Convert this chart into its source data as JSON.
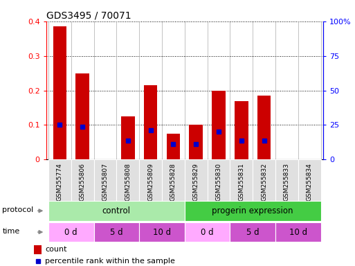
{
  "title": "GDS3495 / 70071",
  "samples": [
    "GSM255774",
    "GSM255806",
    "GSM255807",
    "GSM255808",
    "GSM255809",
    "GSM255828",
    "GSM255829",
    "GSM255830",
    "GSM255831",
    "GSM255832",
    "GSM255833",
    "GSM255834"
  ],
  "count_values": [
    0.385,
    0.25,
    0.0,
    0.125,
    0.215,
    0.075,
    0.1,
    0.2,
    0.17,
    0.185,
    0.0,
    0.0
  ],
  "percentile_values": [
    25.0,
    23.75,
    0.0,
    13.75,
    21.25,
    11.25,
    11.25,
    20.0,
    13.75,
    13.75,
    0.0,
    0.0
  ],
  "left_ylim": [
    0,
    0.4
  ],
  "right_ylim": [
    0,
    100
  ],
  "left_yticks": [
    0,
    0.1,
    0.2,
    0.3,
    0.4
  ],
  "right_yticks": [
    0,
    25,
    50,
    75,
    100
  ],
  "right_yticklabels": [
    "0",
    "25",
    "50",
    "75",
    "100%"
  ],
  "bar_color": "#cc0000",
  "percentile_color": "#0000cc",
  "protocol_labels": [
    "control",
    "progerin expression"
  ],
  "protocol_color_light": "#aaeea a",
  "protocol_color_dark": "#44cc44",
  "time_labels": [
    "0 d",
    "5 d",
    "10 d",
    "0 d",
    "5 d",
    "10 d"
  ],
  "time_color_light": "#ffaaff",
  "time_color_dark": "#cc55cc",
  "background_color": "#ffffff",
  "bar_width": 0.6,
  "legend_count_label": "count",
  "legend_pct_label": "percentile rank within the sample"
}
